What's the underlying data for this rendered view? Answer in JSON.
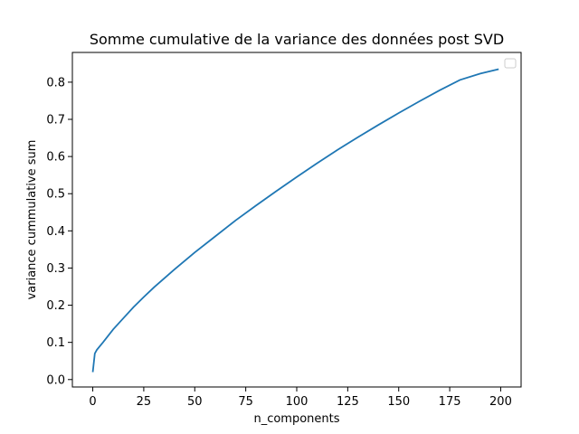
{
  "chart_data": {
    "type": "line",
    "title": "Somme cumulative de la variance des données post SVD",
    "xlabel": "n_components",
    "ylabel": "variance cummulative sum",
    "xlim": [
      -10,
      210
    ],
    "ylim": [
      -0.02,
      0.88
    ],
    "xticks": [
      0,
      25,
      50,
      75,
      100,
      125,
      150,
      175,
      200
    ],
    "yticks": [
      0.0,
      0.1,
      0.2,
      0.3,
      0.4,
      0.5,
      0.6,
      0.7,
      0.8
    ],
    "xtick_labels": [
      "0",
      "25",
      "50",
      "75",
      "100",
      "125",
      "150",
      "175",
      "200"
    ],
    "ytick_labels": [
      "0.0",
      "0.1",
      "0.2",
      "0.3",
      "0.4",
      "0.5",
      "0.6",
      "0.7",
      "0.8"
    ],
    "grid": false,
    "legend": "top-right",
    "series": [
      {
        "color": "#1f77b4",
        "x": [
          0,
          1,
          2,
          5,
          10,
          15,
          20,
          25,
          30,
          40,
          50,
          60,
          70,
          80,
          90,
          100,
          110,
          120,
          130,
          140,
          150,
          160,
          170,
          180,
          190,
          199
        ],
        "y": [
          0.02,
          0.07,
          0.08,
          0.1,
          0.135,
          0.165,
          0.195,
          0.222,
          0.248,
          0.296,
          0.342,
          0.385,
          0.428,
          0.468,
          0.507,
          0.545,
          0.582,
          0.618,
          0.652,
          0.685,
          0.717,
          0.748,
          0.778,
          0.806,
          0.823,
          0.835
        ]
      }
    ]
  }
}
